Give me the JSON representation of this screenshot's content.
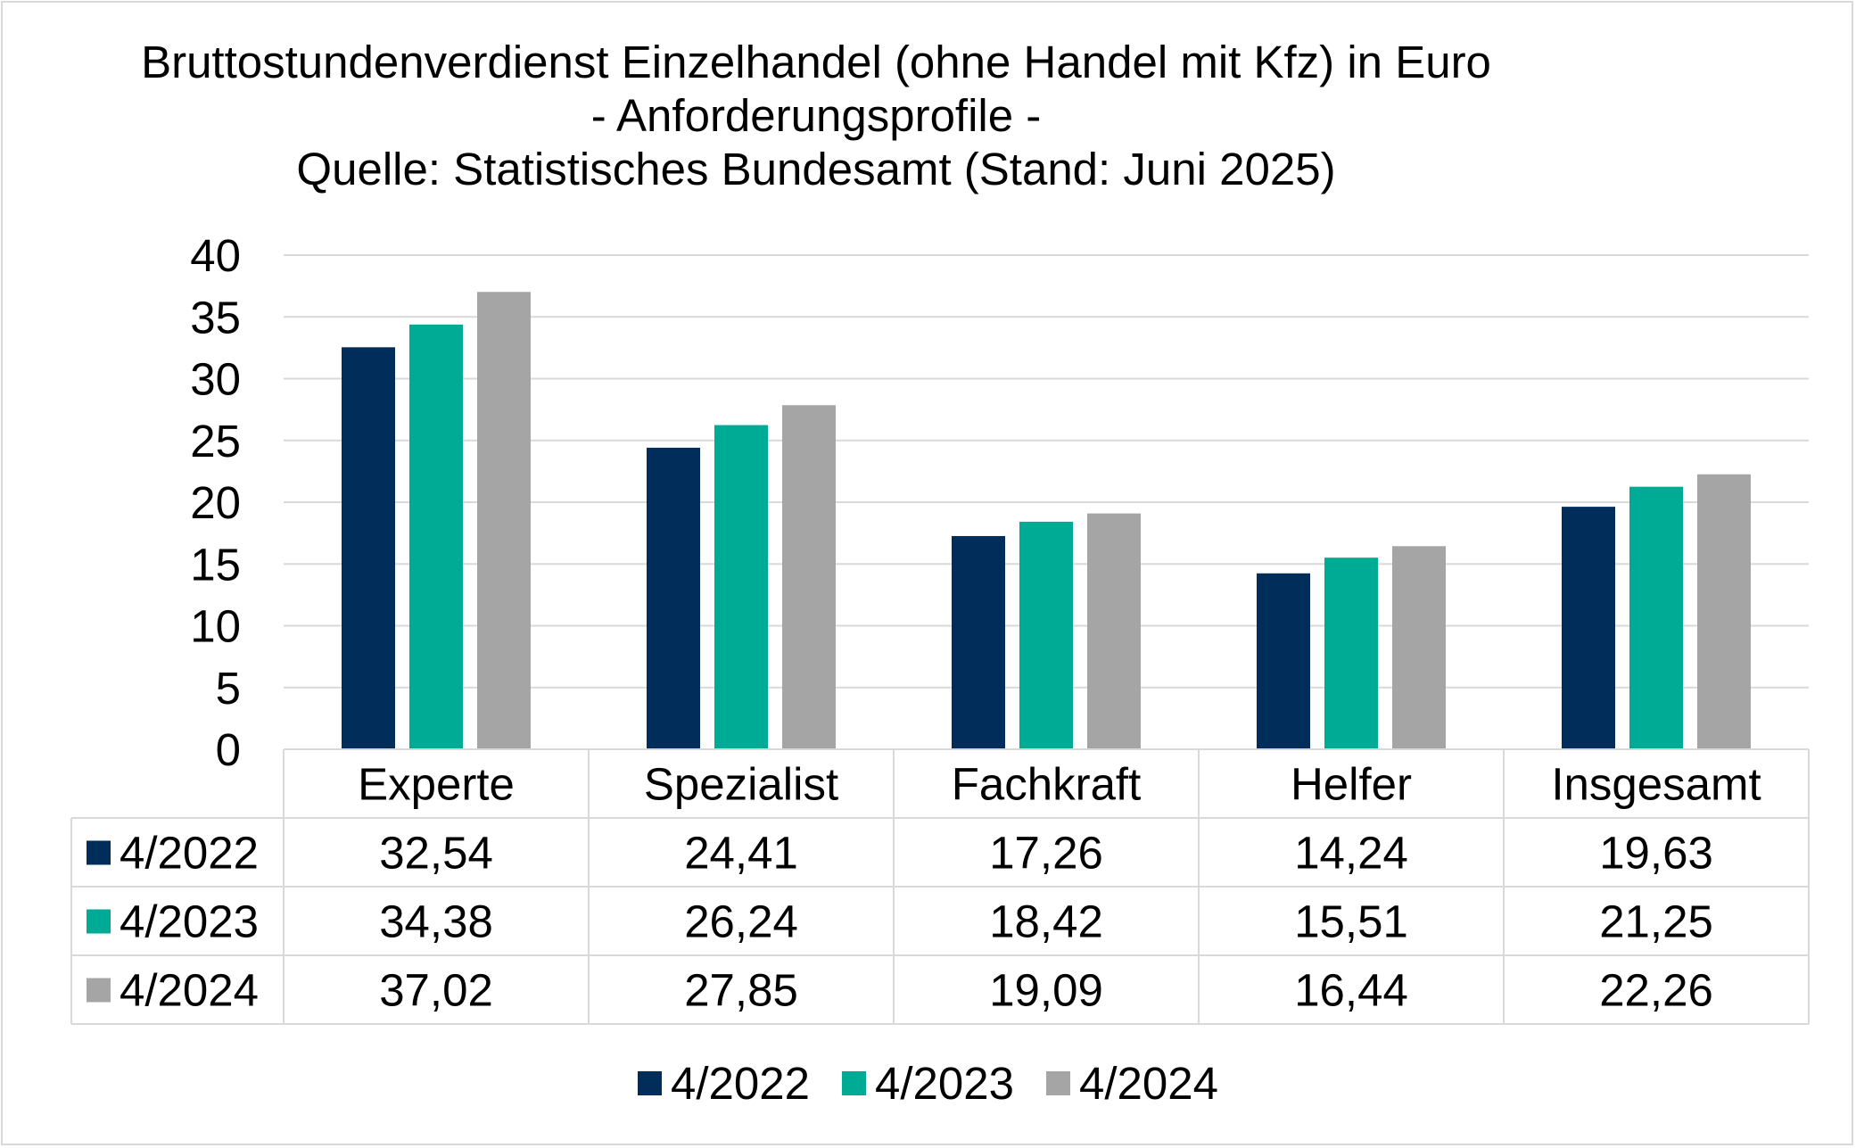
{
  "chart_data": {
    "type": "bar",
    "title_lines": [
      "Bruttostundenverdienst Einzelhandel (ohne Handel mit Kfz) in Euro",
      "- Anforderungsprofile -",
      "Quelle: Statistisches Bundesamt (Stand: Juni 2025)"
    ],
    "categories": [
      "Experte",
      "Spezialist",
      "Fachkraft",
      "Helfer",
      "Insgesamt"
    ],
    "series": [
      {
        "name": "4/2022",
        "color": "#002d5a",
        "values": [
          32.54,
          24.41,
          17.26,
          14.24,
          19.63
        ],
        "labels": [
          "32,54",
          "24,41",
          "17,26",
          "14,24",
          "19,63"
        ]
      },
      {
        "name": "4/2023",
        "color": "#00ab96",
        "values": [
          34.38,
          26.24,
          18.42,
          15.51,
          21.25
        ],
        "labels": [
          "34,38",
          "26,24",
          "18,42",
          "15,51",
          "21,25"
        ]
      },
      {
        "name": "4/2024",
        "color": "#a5a5a5",
        "values": [
          37.02,
          27.85,
          19.09,
          16.44,
          22.26
        ],
        "labels": [
          "37,02",
          "27,85",
          "19,09",
          "16,44",
          "22,26"
        ]
      }
    ],
    "ylim": [
      0,
      40
    ],
    "yticks": [
      0,
      5,
      10,
      15,
      20,
      25,
      30,
      35,
      40
    ],
    "grid": true,
    "data_table": true,
    "legend_position": "bottom"
  }
}
